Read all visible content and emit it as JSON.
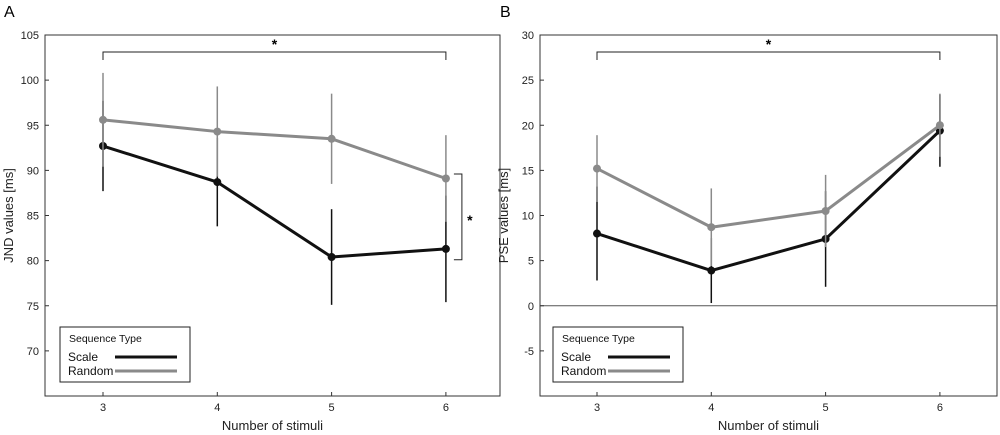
{
  "chart_data": [
    {
      "type": "line",
      "panel_label": "A",
      "xlabel": "Number of stimuli",
      "ylabel": "JND values [ms]",
      "categories": [
        "3",
        "4",
        "5",
        "6"
      ],
      "x": [
        3,
        4,
        5,
        6
      ],
      "ylim": [
        65,
        105
      ],
      "yticks": [
        "70",
        "75",
        "80",
        "85",
        "90",
        "95",
        "100",
        "105"
      ],
      "series": [
        {
          "name": "Scale",
          "color": "#111111",
          "values": [
            92.7,
            88.7,
            80.4,
            81.3
          ],
          "errors": [
            5.0,
            4.9,
            5.3,
            5.9
          ]
        },
        {
          "name": "Random",
          "color": "#8a8a8a",
          "values": [
            95.6,
            94.3,
            93.5,
            89.1
          ],
          "errors": [
            5.2,
            5.0,
            5.0,
            4.8
          ]
        }
      ],
      "legend": {
        "title": "Sequence Type",
        "labels": [
          "Scale",
          "Random"
        ]
      },
      "significance": [
        {
          "type": "top-bracket",
          "from": 3,
          "to": 6,
          "label": "*"
        },
        {
          "type": "side-bracket",
          "at": 6,
          "from": 80.1,
          "to": 89.6,
          "label": "*"
        }
      ]
    },
    {
      "type": "line",
      "panel_label": "B",
      "xlabel": "Number of stimuli",
      "ylabel": "PSE values [ms]",
      "categories": [
        "3",
        "4",
        "5",
        "6"
      ],
      "x": [
        3,
        4,
        5,
        6
      ],
      "ylim": [
        -10,
        30
      ],
      "yticks": [
        "-5",
        "0",
        "5",
        "10",
        "15",
        "20",
        "25",
        "30"
      ],
      "zero_line": true,
      "series": [
        {
          "name": "Scale",
          "color": "#111111",
          "values": [
            8.0,
            3.9,
            7.4,
            19.4
          ],
          "errors": [
            5.2,
            3.6,
            5.3,
            4.0
          ]
        },
        {
          "name": "Random",
          "color": "#8a8a8a",
          "values": [
            15.2,
            8.7,
            10.5,
            20.0
          ],
          "errors": [
            3.7,
            4.3,
            4.0,
            3.5
          ]
        }
      ],
      "legend": {
        "title": "Sequence Type",
        "labels": [
          "Scale",
          "Random"
        ]
      },
      "significance": [
        {
          "type": "top-bracket",
          "from": 3,
          "to": 6,
          "label": "*"
        }
      ]
    }
  ]
}
